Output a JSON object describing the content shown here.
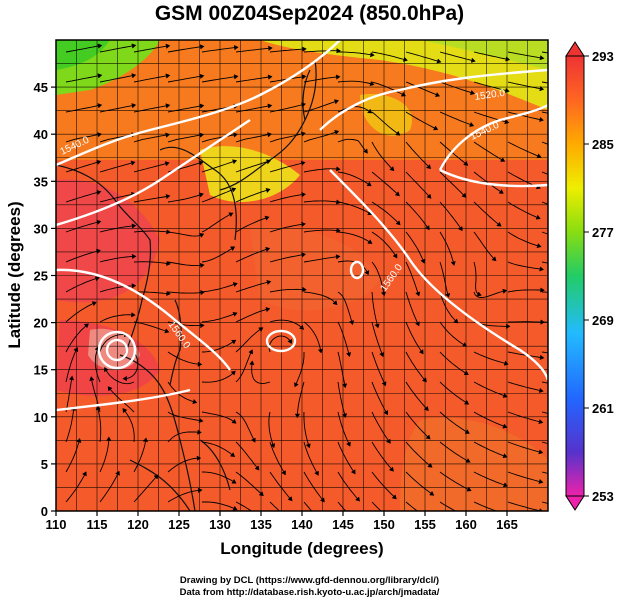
{
  "title": "GSM 00Z04Sep2024 (850.0hPa)",
  "xlabel": "Longitude (degrees)",
  "ylabel": "Latitude  (degrees)",
  "credit_line1": "Drawing by DCL (https://www.gfd-dennou.org/library/dcl/)",
  "credit_line2": "Data from http://database.rish.kyoto-u.ac.jp/arch/jmadata/",
  "chart_data": {
    "type": "heatmap",
    "variable_shading": "temperature",
    "xlim": [
      110,
      170
    ],
    "ylim": [
      0,
      50
    ],
    "x_ticks": [
      110,
      115,
      120,
      125,
      130,
      135,
      140,
      145,
      150,
      155,
      160,
      165
    ],
    "y_ticks": [
      0,
      5,
      10,
      15,
      20,
      25,
      30,
      35,
      40,
      45
    ],
    "grid": true,
    "grid_step_deg": 2.5,
    "colorbar": {
      "range": [
        253,
        293
      ],
      "ticks": [
        "293",
        "285",
        "277",
        "269",
        "261",
        "253"
      ],
      "placement": "right",
      "colors": [
        "#ee22aa",
        "#5533cc",
        "#2266ff",
        "#22bbff",
        "#22cc66",
        "#88dd11",
        "#eeee00",
        "#ffaa00",
        "#ff6622",
        "#ee3333"
      ]
    },
    "contours": {
      "color": "#ffffff",
      "labels": [
        "1520.0",
        "1540.0",
        "1560.0"
      ]
    },
    "overlays": [
      "streamlines",
      "coastlines"
    ]
  }
}
